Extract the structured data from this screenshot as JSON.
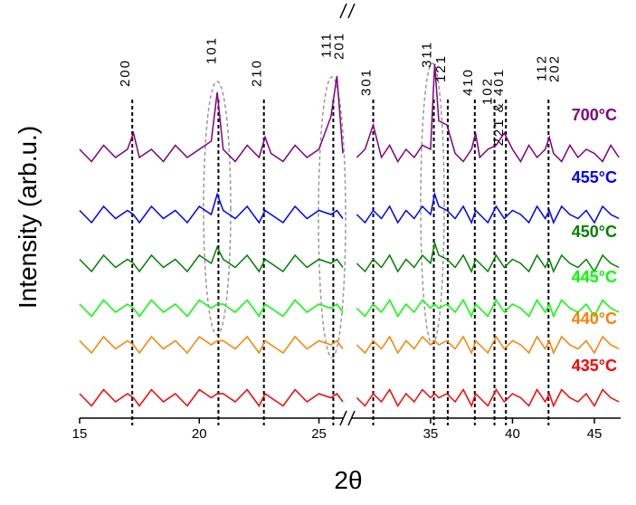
{
  "chart_data": {
    "type": "line",
    "x_label": "2θ",
    "y_label": "Intensity (arb.u.)",
    "x_segments": [
      {
        "xlim": [
          15,
          26
        ],
        "xticks": [
          15,
          20,
          25
        ]
      },
      {
        "xlim": [
          30.2,
          46.6
        ],
        "xticks": [
          35,
          40,
          45
        ]
      }
    ],
    "ylim": [
      0,
      100
    ],
    "x": [
      15,
      15.5,
      16,
      16.5,
      17,
      17.25,
      17.5,
      18,
      18.5,
      19,
      19.5,
      20,
      20.5,
      20.75,
      21,
      21.5,
      22,
      22.5,
      22.75,
      23,
      23.5,
      24,
      24.5,
      25,
      25.5,
      25.75,
      26,
      28,
      30.5,
      31,
      31.5,
      32,
      32.5,
      33,
      33.5,
      34,
      34.5,
      35,
      35.25,
      35.5,
      36,
      36.5,
      37,
      37.5,
      37.75,
      38,
      38.5,
      39,
      39.5,
      40,
      40.5,
      41,
      41.5,
      42,
      42.25,
      42.5,
      43,
      43.5,
      44,
      44.5,
      45,
      45.5,
      46,
      46.5
    ],
    "series": [
      {
        "name": "700°C",
        "color": "#800080",
        "values": [
          66,
          63,
          67,
          64,
          66,
          70,
          64,
          66,
          63,
          67,
          64,
          66,
          68,
          80,
          66,
          63,
          67,
          64,
          69,
          65,
          63,
          67,
          64,
          66,
          74,
          84,
          65,
          null,
          64,
          66,
          72,
          64,
          67,
          63,
          66,
          64,
          67,
          66,
          87,
          73,
          72,
          65,
          63,
          66,
          70,
          64,
          66,
          67,
          70,
          66,
          63,
          67,
          64,
          66,
          69,
          65,
          63,
          67,
          64,
          66,
          65,
          63,
          67,
          64
        ]
      },
      {
        "name": "455°C",
        "color": "#0000ff",
        "values": [
          51,
          48,
          52,
          49,
          51,
          50,
          48,
          52,
          49,
          51,
          48,
          52,
          50,
          55,
          51,
          49,
          52,
          48,
          51,
          50,
          48,
          52,
          49,
          51,
          50,
          51,
          49,
          null,
          50,
          48,
          51,
          49,
          52,
          48,
          51,
          49,
          52,
          50,
          55,
          52,
          51,
          49,
          52,
          48,
          51,
          50,
          48,
          52,
          49,
          51,
          50,
          48,
          52,
          49,
          51,
          48,
          52,
          50,
          49,
          51,
          48,
          52,
          50,
          49
        ]
      },
      {
        "name": "450°C",
        "color": "#008000",
        "values": [
          39,
          36,
          40,
          37,
          39,
          38,
          36,
          40,
          37,
          39,
          36,
          40,
          38,
          42,
          39,
          37,
          40,
          36,
          39,
          38,
          36,
          40,
          37,
          39,
          38,
          39,
          37,
          null,
          38,
          36,
          39,
          37,
          40,
          36,
          39,
          37,
          40,
          38,
          43,
          40,
          39,
          37,
          40,
          36,
          39,
          38,
          36,
          40,
          37,
          39,
          38,
          36,
          40,
          37,
          39,
          36,
          40,
          38,
          37,
          39,
          36,
          40,
          38,
          37
        ]
      },
      {
        "name": "445°C",
        "color": "#00ff00",
        "values": [
          28,
          25,
          29,
          26,
          28,
          27,
          25,
          29,
          26,
          28,
          25,
          29,
          27,
          28,
          28,
          26,
          29,
          25,
          28,
          27,
          25,
          29,
          26,
          28,
          27,
          28,
          26,
          null,
          27,
          25,
          28,
          26,
          29,
          25,
          28,
          26,
          29,
          27,
          28,
          27,
          28,
          26,
          29,
          25,
          28,
          27,
          25,
          29,
          26,
          28,
          27,
          25,
          29,
          26,
          28,
          25,
          29,
          27,
          26,
          28,
          25,
          29,
          27,
          26
        ]
      },
      {
        "name": "440°C",
        "color": "#ff8000",
        "values": [
          19,
          16,
          20,
          17,
          19,
          18,
          16,
          20,
          17,
          19,
          16,
          20,
          18,
          19,
          19,
          17,
          20,
          16,
          19,
          18,
          16,
          20,
          17,
          19,
          18,
          19,
          17,
          null,
          18,
          16,
          19,
          17,
          20,
          16,
          19,
          17,
          20,
          18,
          19,
          18,
          19,
          17,
          20,
          16,
          19,
          18,
          16,
          20,
          17,
          19,
          18,
          16,
          20,
          17,
          19,
          16,
          20,
          18,
          17,
          19,
          16,
          20,
          18,
          17
        ]
      },
      {
        "name": "435°C",
        "color": "#ff0000",
        "values": [
          6,
          3,
          7,
          4,
          6,
          5,
          3,
          7,
          4,
          6,
          3,
          7,
          5,
          6,
          6,
          4,
          7,
          3,
          6,
          5,
          3,
          7,
          4,
          6,
          5,
          6,
          4,
          null,
          5,
          3,
          6,
          4,
          7,
          3,
          6,
          4,
          7,
          5,
          6,
          5,
          6,
          4,
          7,
          3,
          6,
          5,
          3,
          7,
          4,
          6,
          5,
          3,
          7,
          4,
          6,
          3,
          7,
          5,
          4,
          6,
          3,
          7,
          5,
          4
        ]
      }
    ],
    "reflections": [
      {
        "x": 17.2,
        "labels": [
          "200"
        ]
      },
      {
        "x": 20.8,
        "labels": [
          "101"
        ]
      },
      {
        "x": 22.7,
        "labels": [
          "210"
        ]
      },
      {
        "x": 25.6,
        "labels": [
          "111",
          "201"
        ]
      },
      {
        "x": 31.5,
        "labels": [
          "301"
        ]
      },
      {
        "x": 35.2,
        "labels": [
          "311"
        ]
      },
      {
        "x": 36.05,
        "labels": [
          "121"
        ]
      },
      {
        "x": 37.7,
        "labels": [
          "410"
        ]
      },
      {
        "x": 38.9,
        "labels": [
          "102"
        ]
      },
      {
        "x": 39.6,
        "labels": [
          "221 & 401"
        ]
      },
      {
        "x": 42.2,
        "labels": [
          "112",
          "202"
        ]
      }
    ]
  }
}
